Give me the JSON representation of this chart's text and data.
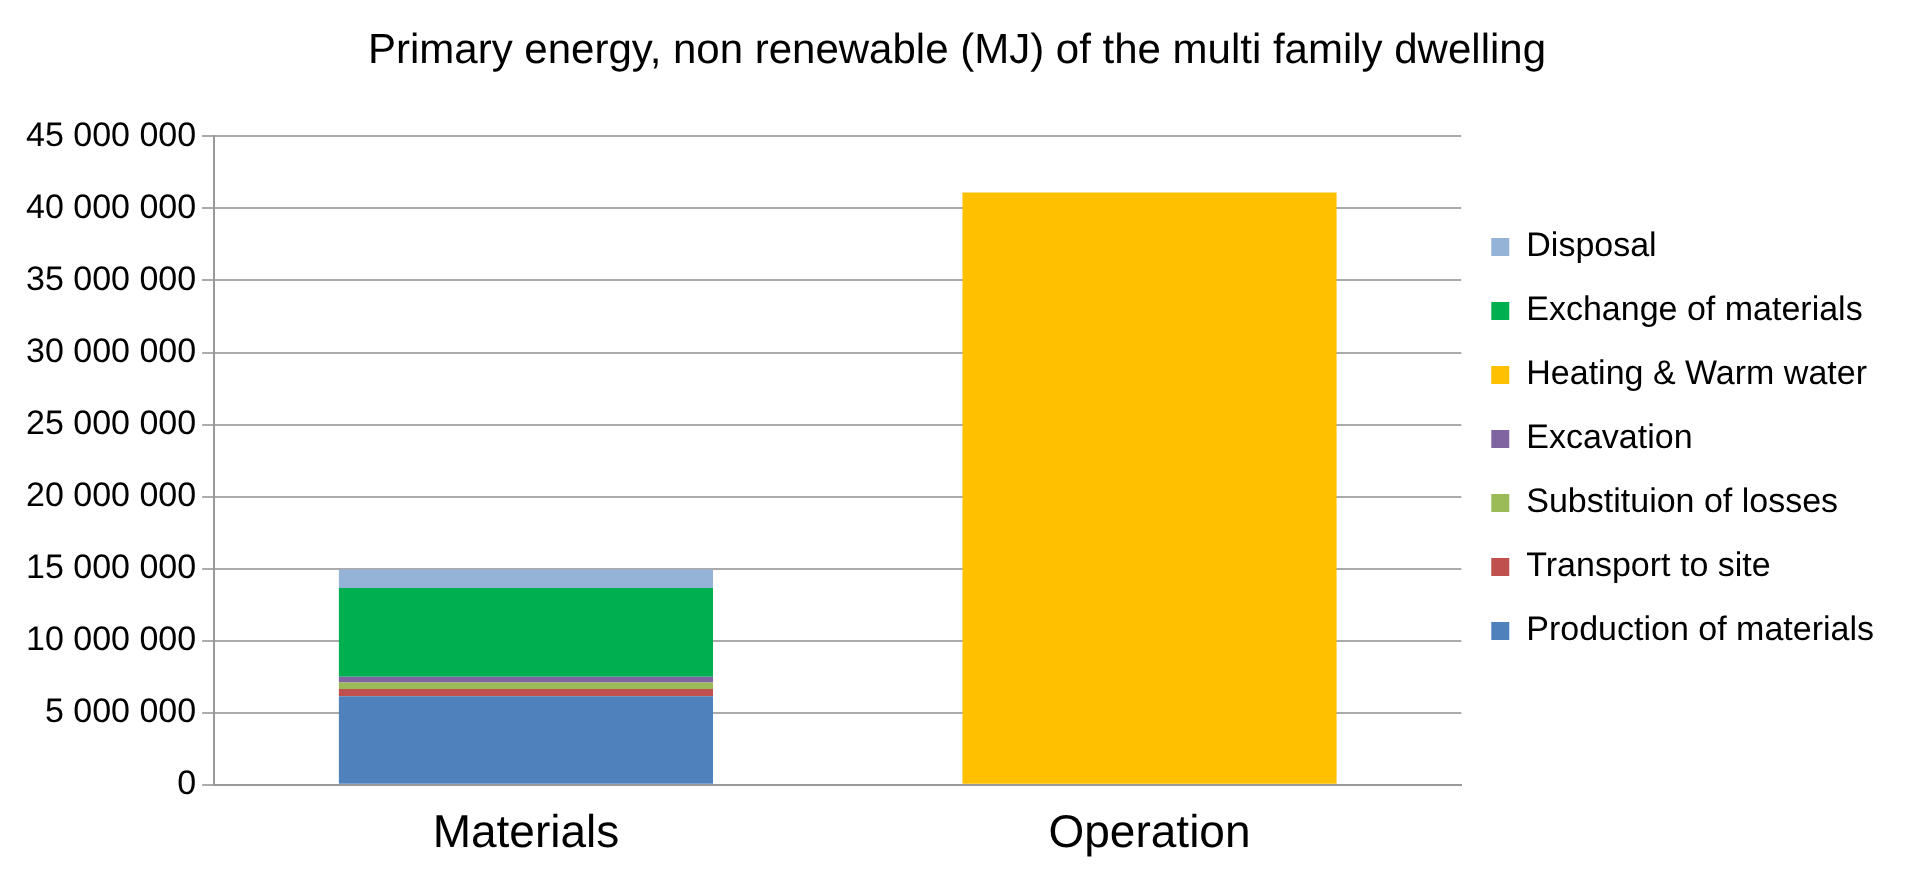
{
  "chart_data": {
    "type": "bar",
    "title": "Primary energy, non renewable (MJ) of the multi family dwelling",
    "categories": [
      "Materials",
      "Operation"
    ],
    "stacked": true,
    "legend": "right",
    "grid": "y",
    "ylim": [
      0,
      45000000
    ],
    "yticks": [
      {
        "value": 0,
        "label": "0"
      },
      {
        "value": 5000000,
        "label": "5 000 000"
      },
      {
        "value": 10000000,
        "label": "10 000 000"
      },
      {
        "value": 15000000,
        "label": "15 000 000"
      },
      {
        "value": 20000000,
        "label": "20 000 000"
      },
      {
        "value": 25000000,
        "label": "25 000 000"
      },
      {
        "value": 30000000,
        "label": "30 000 000"
      },
      {
        "value": 35000000,
        "label": "35 000 000"
      },
      {
        "value": 40000000,
        "label": "40 000 000"
      },
      {
        "value": 45000000,
        "label": "45 000 000"
      }
    ],
    "series": [
      {
        "name": "Production of materials",
        "color": "#4f81bd",
        "values": [
          6150000,
          null
        ]
      },
      {
        "name": "Transport to site",
        "color": "#c0504d",
        "values": [
          500000,
          null
        ]
      },
      {
        "name": "Substituion of losses",
        "color": "#9bbb59",
        "values": [
          450000,
          null
        ]
      },
      {
        "name": "Excavation",
        "color": "#8064a2",
        "values": [
          400000,
          null
        ]
      },
      {
        "name": "Heating & Warm water",
        "color": "#ffc000",
        "values": [
          null,
          41100000
        ]
      },
      {
        "name": "Exchange of materials",
        "color": "#00b050",
        "values": [
          6150000,
          null
        ]
      },
      {
        "name": "Disposal",
        "color": "#95b3d7",
        "values": [
          1300000,
          null
        ]
      }
    ]
  }
}
